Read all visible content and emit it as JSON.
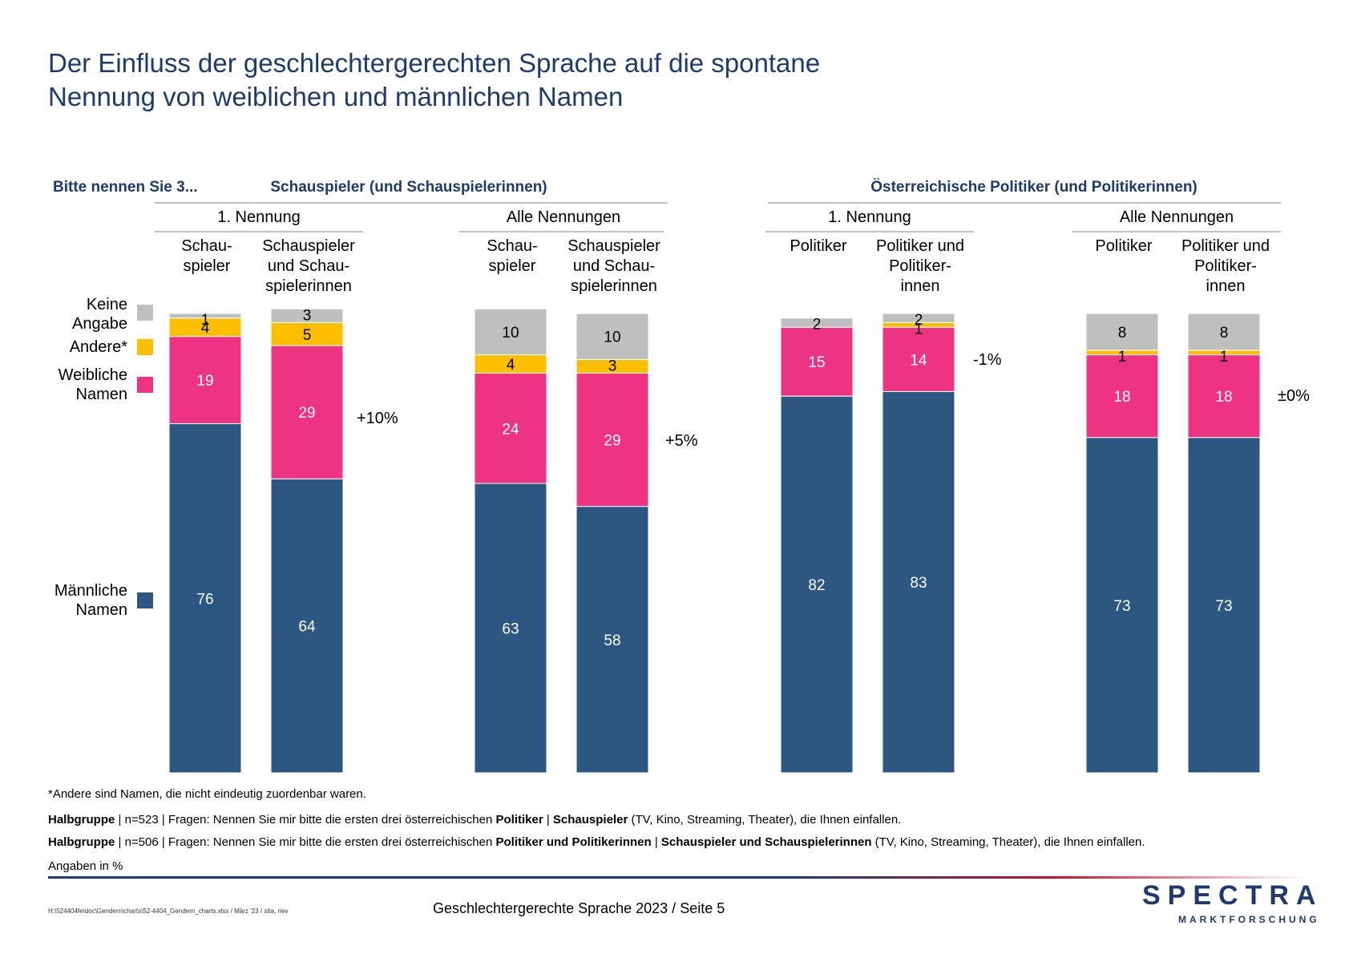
{
  "title": {
    "line1": "Der Einfluss der geschlechtergerechten Sprache auf die spontane",
    "line2": "Nennung von weiblichen und männlichen Namen"
  },
  "question_label": "Bitte nennen Sie 3...",
  "groups": [
    {
      "title": "Schauspieler (und Schauspielerinnen)",
      "subgroups": [
        {
          "title": "1. Nennung",
          "delta": "+10%"
        },
        {
          "title": "Alle Nennungen",
          "delta": "+5%"
        }
      ]
    },
    {
      "title": "Österreichische Politiker (und Politikerinnen)",
      "subgroups": [
        {
          "title": "1. Nennung",
          "delta": "-1%"
        },
        {
          "title": "Alle Nennungen",
          "delta": "±0%"
        }
      ]
    }
  ],
  "legend": [
    {
      "label": "Keine\nAngabe",
      "color": "#bfbfbf"
    },
    {
      "label": "Andere*",
      "color": "#fbbf00"
    },
    {
      "label": "Weibliche\nNamen",
      "color": "#ed3382"
    },
    {
      "label": "Männliche\nNamen",
      "color": "#2c5783"
    }
  ],
  "chart_data": {
    "type": "bar",
    "stacked": true,
    "categories": [
      "Schau-\nspieler",
      "Schauspieler\nund Schau-\nspielerinnen",
      "Schau-\nspieler",
      "Schauspieler\nund Schau-\nspielerinnen",
      "Politiker",
      "Politiker und\nPolitiker-\ninnen",
      "Politiker",
      "Politiker und\nPolitiker-\ninnen"
    ],
    "series": [
      {
        "name": "Männliche Namen",
        "color": "#2c5783",
        "values": [
          76,
          64,
          63,
          58,
          82,
          83,
          73,
          73
        ]
      },
      {
        "name": "Weibliche Namen",
        "color": "#ed3382",
        "values": [
          19,
          29,
          24,
          29,
          15,
          14,
          18,
          18
        ]
      },
      {
        "name": "Andere*",
        "color": "#fbbf00",
        "values": [
          4,
          5,
          4,
          3,
          0,
          1,
          1,
          1
        ]
      },
      {
        "name": "Keine Angabe",
        "color": "#bfbfbf",
        "values": [
          1,
          3,
          10,
          10,
          2,
          2,
          8,
          8
        ]
      }
    ],
    "ylim": [
      0,
      100
    ]
  },
  "footnotes": {
    "andere": "*Andere sind Namen, die nicht eindeutig zuordenbar waren.",
    "n1": {
      "label": "Halbgruppe",
      "text1": " | n=523 | Fragen: Nennen Sie mir bitte die ersten drei österreichischen ",
      "bold1": "Politiker",
      "sep": " | ",
      "bold2": "Schauspieler",
      "text2": " (TV, Kino, Streaming, Theater), die Ihnen einfallen."
    },
    "n2": {
      "label": "Halbgruppe",
      "text1": " | n=506 | Fragen: Nennen Sie mir bitte die ersten drei österreichischen ",
      "bold1": "Politiker und Politikerinnen",
      "sep": " | ",
      "bold2": "Schauspieler und Schauspielerinnen",
      "text2": " (TV, Kino, Streaming, Theater), die Ihnen einfallen."
    },
    "units": "Angaben in %"
  },
  "footer": {
    "path": "H:\\524404fe\\doc\\Gendern\\charts\\52-4404_Gendern_charts.xlsx / März '23 / stta, riev",
    "page": "Geschlechtergerechte Sprache 2023  /  Seite  5",
    "logo_main": "SPECTRA",
    "logo_sub": "MARKTFORSCHUNG"
  }
}
